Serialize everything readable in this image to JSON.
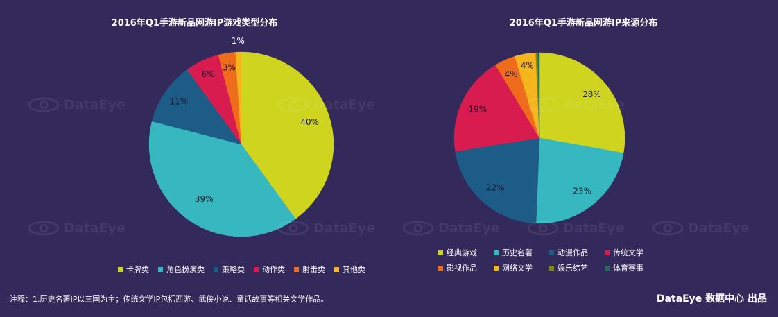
{
  "chart_data": [
    {
      "type": "pie",
      "title": "2016年Q1手游新品网游IP游戏类型分布",
      "labels": [
        "卡牌类",
        "角色扮演类",
        "策略类",
        "动作类",
        "射击类",
        "其他类"
      ],
      "values": [
        40,
        39,
        11,
        6,
        3,
        1
      ],
      "value_labels": [
        "40%",
        "39%",
        "11%",
        "6%",
        "3%",
        "1%"
      ],
      "colors": [
        "#cfd41f",
        "#37b8c0",
        "#1c5c86",
        "#d81c4f",
        "#ef6c1c",
        "#f5b51c"
      ],
      "legend_position": "bottom"
    },
    {
      "type": "pie",
      "title": "2016年Q1手游新品网游IP来源分布",
      "labels": [
        "经典游戏",
        "历史名著",
        "动漫作品",
        "传统文学",
        "影视作品",
        "网络文学",
        "娱乐综艺",
        "体育赛事"
      ],
      "values": [
        28,
        23,
        22,
        19,
        4,
        4,
        0.4,
        0.3
      ],
      "value_labels": [
        "28%",
        "23%",
        "22%",
        "19%",
        "4%",
        "4%",
        "",
        ""
      ],
      "colors": [
        "#cfd41f",
        "#37b8c0",
        "#1c5c86",
        "#d81c4f",
        "#ef6c1c",
        "#f5b51c",
        "#7a8a1c",
        "#1f6f5a"
      ],
      "legend_position": "bottom"
    }
  ],
  "footnote": "注释：1.历史名著IP以三国为主；传统文学IP包括西游、武侠小说、童话故事等相关文学作品。",
  "credit": "DataEye 数据中心 出品",
  "watermark_text": "DataEye"
}
